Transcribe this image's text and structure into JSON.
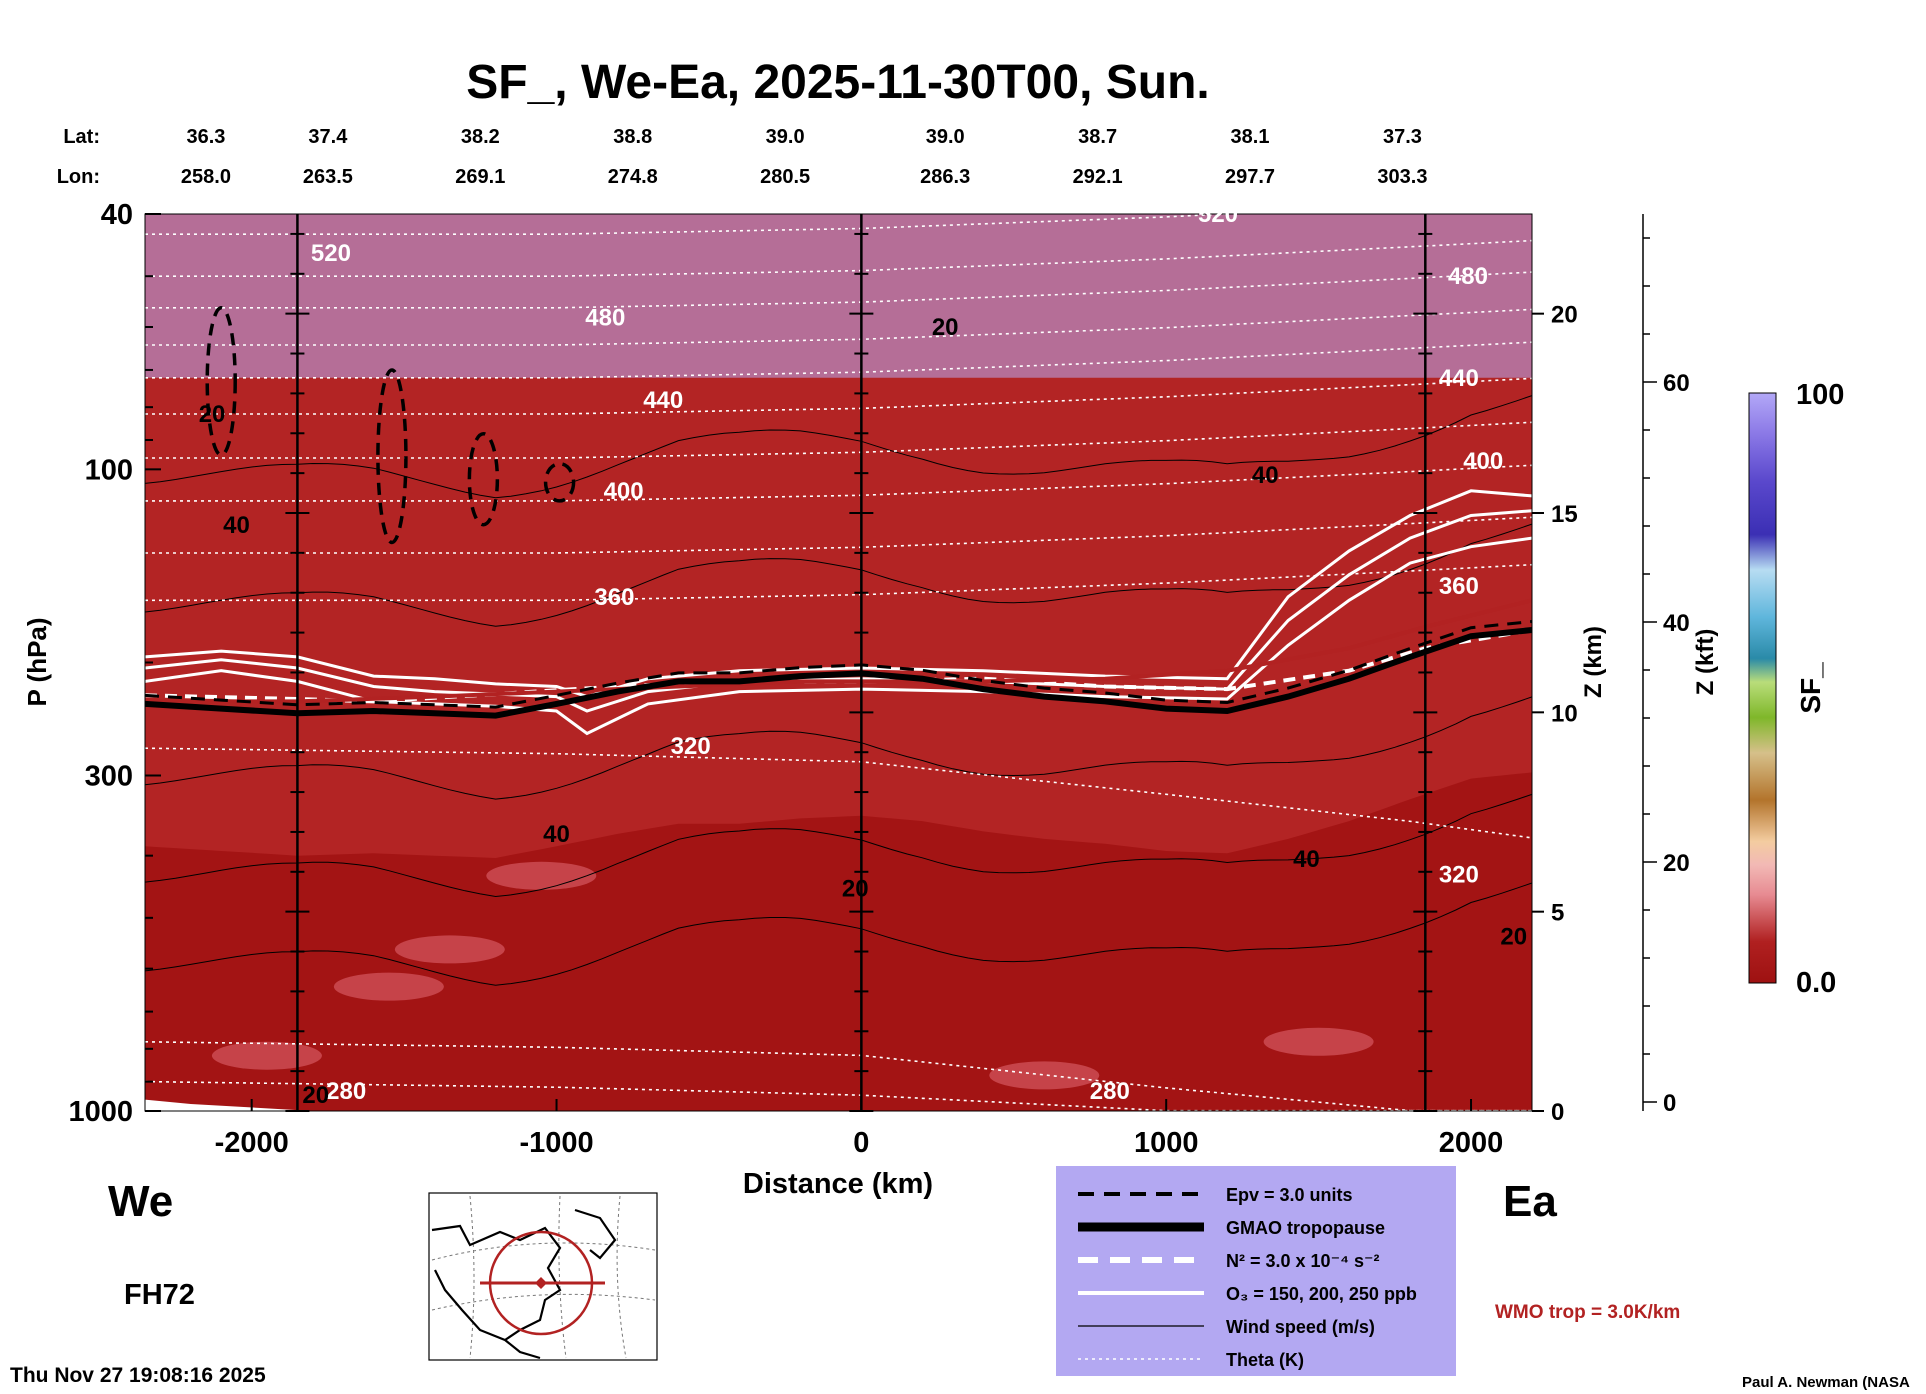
{
  "chart_data": {
    "type": "heatmap",
    "title": "SF_, We-Ea, 2025-11-30T00, Sun.",
    "xlabel": "Distance (km)",
    "ylabel": "P (hPa)",
    "right_label_km": "Z (km)",
    "right_label_kft": "Z (kft)",
    "x_ticks": [
      -2000,
      -1000,
      0,
      1000,
      2000
    ],
    "xlim": [
      -2350,
      2200
    ],
    "y_ticks": [
      40,
      100,
      300,
      1000
    ],
    "ylim": [
      1000,
      40
    ],
    "y_scale": "log",
    "z_km_ticks": [
      0,
      5,
      10,
      15,
      20
    ],
    "z_kft_ticks": [
      0,
      20,
      40,
      60
    ],
    "lat_label": "Lat:",
    "lon_label": "Lon:",
    "lat": [
      "36.3",
      "37.4",
      "38.2",
      "38.8",
      "39.0",
      "39.0",
      "38.7",
      "38.1",
      "37.3"
    ],
    "lon": [
      "258.0",
      "263.5",
      "269.1",
      "274.8",
      "280.5",
      "286.3",
      "292.1",
      "297.7",
      "303.3"
    ],
    "lat_lon_distance_km": [
      -2150,
      -1750,
      -1250,
      -750,
      -250,
      275,
      775,
      1275,
      1775
    ],
    "vertical_lines_km": [
      -1850,
      0,
      1850
    ],
    "colorbar": {
      "label": "SF_",
      "max_label": "100",
      "min_label": "0.0"
    },
    "theta_labels": [
      {
        "text": "520",
        "x": -1740,
        "p": 46
      },
      {
        "text": "480",
        "x": -840,
        "p": 58
      },
      {
        "text": "440",
        "x": -650,
        "p": 78
      },
      {
        "text": "400",
        "x": -780,
        "p": 108
      },
      {
        "text": "360",
        "x": -810,
        "p": 158
      },
      {
        "text": "320",
        "x": -560,
        "p": 270
      },
      {
        "text": "280",
        "x": -1690,
        "p": 930
      },
      {
        "text": "280",
        "x": 815,
        "p": 930
      },
      {
        "text": "480",
        "x": 1990,
        "p": 50
      },
      {
        "text": "440",
        "x": 1960,
        "p": 72
      },
      {
        "text": "400",
        "x": 2040,
        "p": 97
      },
      {
        "text": "360",
        "x": 1960,
        "p": 152
      },
      {
        "text": "320",
        "x": 1960,
        "p": 428
      },
      {
        "text": "520",
        "x": 1170,
        "p": 40
      }
    ],
    "wind_labels": [
      {
        "text": "20",
        "x": -2130,
        "p": 82
      },
      {
        "text": "40",
        "x": -2050,
        "p": 122
      },
      {
        "text": "20",
        "x": 275,
        "p": 60
      },
      {
        "text": "40",
        "x": 1325,
        "p": 102
      },
      {
        "text": "40",
        "x": -1000,
        "p": 370
      },
      {
        "text": "20",
        "x": -20,
        "p": 450
      },
      {
        "text": "40",
        "x": 1460,
        "p": 405
      },
      {
        "text": "20",
        "x": 2140,
        "p": 535
      },
      {
        "text": "20",
        "x": -1790,
        "p": 945
      }
    ],
    "side_labels": {
      "left": "We",
      "right": "Ea"
    },
    "forecast_hour": "FH72",
    "legend": {
      "entries": [
        {
          "style": "dashed-black",
          "label": "Epv = 3.0 units"
        },
        {
          "style": "thick-black",
          "label": "GMAO tropopause"
        },
        {
          "style": "dashed-white",
          "label": "N² = 3.0 x 10⁻⁴ s⁻²"
        },
        {
          "style": "solid-white",
          "label": "O₃ = 150, 200, 250 ppb"
        },
        {
          "style": "thin-black",
          "label": "Wind speed (m/s)"
        },
        {
          "style": "dotted-white",
          "label": "Theta (K)"
        }
      ],
      "background": "#b3a8f2"
    },
    "wmo_trop": "WMO trop = 3.0K/km",
    "series": [
      {
        "name": "GMAO tropopause",
        "x": [
          -2350,
          -2100,
          -1850,
          -1600,
          -1400,
          -1200,
          -1000,
          -800,
          -600,
          -400,
          -200,
          0,
          200,
          400,
          600,
          800,
          1000,
          1200,
          1400,
          1600,
          1800,
          2000,
          2200
        ],
        "p": [
          232,
          236,
          240,
          238,
          240,
          242,
          232,
          222,
          214,
          214,
          210,
          208,
          212,
          220,
          226,
          230,
          236,
          238,
          226,
          212,
          196,
          182,
          178
        ]
      },
      {
        "name": "WMO trop",
        "x": [
          -2350,
          -1850,
          -1400,
          -1000,
          -600,
          -200,
          0,
          400,
          800,
          1200,
          1600,
          1850,
          2200
        ],
        "p": [
          230,
          230,
          226,
          222,
          218,
          214,
          214,
          214,
          212,
          206,
          190,
          176,
          160
        ]
      },
      {
        "name": "O3 150 ppb",
        "x": [
          -2350,
          -2100,
          -1850,
          -1600,
          -1400,
          -1200,
          -1000,
          -900,
          -700,
          -400,
          0,
          400,
          800,
          1200,
          1400,
          1600,
          1800,
          2000,
          2200
        ],
        "p": [
          214,
          206,
          214,
          230,
          232,
          234,
          238,
          258,
          232,
          222,
          220,
          222,
          226,
          228,
          188,
          160,
          140,
          132,
          128
        ]
      },
      {
        "name": "O3 200 ppb",
        "x": [
          -2350,
          -2100,
          -1850,
          -1600,
          -1400,
          -1200,
          -1000,
          -900,
          -700,
          -400,
          0,
          400,
          800,
          1200,
          1400,
          1600,
          1800,
          2000,
          2200
        ],
        "p": [
          204,
          198,
          204,
          218,
          222,
          224,
          226,
          238,
          222,
          214,
          212,
          214,
          218,
          220,
          172,
          146,
          128,
          118,
          116
        ]
      },
      {
        "name": "O3 250 ppb",
        "x": [
          -2350,
          -2100,
          -1850,
          -1600,
          -1400,
          -1200,
          -1000,
          -900,
          -700,
          -400,
          0,
          400,
          800,
          1200,
          1400,
          1600,
          1800,
          2000,
          2200
        ],
        "p": [
          196,
          192,
          196,
          210,
          212,
          216,
          218,
          226,
          212,
          206,
          204,
          206,
          210,
          212,
          158,
          134,
          118,
          108,
          110
        ]
      }
    ],
    "tropopause_n2": {
      "p": [
        225,
        228,
        230,
        224,
        218,
        214,
        214,
        212,
        218,
        220,
        206,
        190,
        178
      ]
    },
    "epv_contours": [
      {
        "center_x": -2100,
        "p_top": 56,
        "p_bottom": 95
      },
      {
        "center_x": -1540,
        "p_top": 70,
        "p_bottom": 130
      },
      {
        "center_x": -1240,
        "p_top": 88,
        "p_bottom": 122
      },
      {
        "center_x": -990,
        "p_top": 98,
        "p_bottom": 112
      }
    ],
    "timestamp": "Thu Nov 27 19:08:16 2025",
    "credit": "Paul A. Newman (NASA"
  }
}
